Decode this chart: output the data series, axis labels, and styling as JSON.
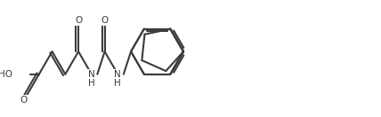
{
  "bg_color": "#ffffff",
  "line_color": "#3c3c3c",
  "text_color": "#3c3c3c",
  "figsize": [
    4.28,
    1.32
  ],
  "dpi": 100,
  "xlim": [
    -0.3,
    13.8
  ],
  "ylim": [
    -1.6,
    2.8
  ],
  "lw": 1.5,
  "fs": 7.5,
  "BL": 1.0
}
